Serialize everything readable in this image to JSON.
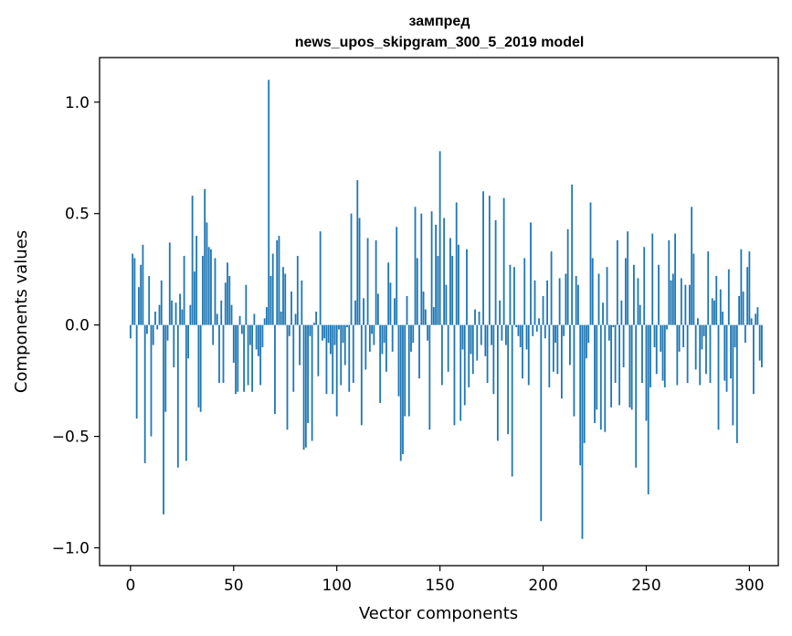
{
  "chart_data": {
    "type": "bar",
    "title_line1": "зампред",
    "title_line2": "news_upos_skipgram_300_5_2019 model",
    "xlabel": "Vector components",
    "ylabel": "Components values",
    "xlim": [
      -15,
      314
    ],
    "ylim": [
      -1.08,
      1.2
    ],
    "xticks": [
      0,
      50,
      100,
      150,
      200,
      250,
      300
    ],
    "xtick_labels": [
      "0",
      "50",
      "100",
      "150",
      "200",
      "250",
      "300"
    ],
    "yticks": [
      -1.0,
      -0.5,
      0.0,
      0.5,
      1.0
    ],
    "ytick_labels": [
      "−1.0",
      "−0.5",
      "0.0",
      "0.5",
      "1.0"
    ],
    "bar_color": "#1f77b4",
    "values": [
      -0.06,
      0.32,
      0.3,
      -0.42,
      0.17,
      0.27,
      0.36,
      -0.62,
      -0.04,
      0.22,
      -0.5,
      -0.09,
      0.06,
      -0.02,
      0.09,
      0.2,
      -0.85,
      -0.39,
      -0.07,
      0.37,
      0.11,
      -0.19,
      0.1,
      -0.64,
      0.14,
      0.07,
      0.31,
      -0.61,
      -0.15,
      0.09,
      0.58,
      0.24,
      0.4,
      -0.37,
      -0.39,
      0.31,
      0.61,
      0.46,
      0.35,
      0.34,
      -0.09,
      0.3,
      0.05,
      -0.26,
      0.11,
      -0.26,
      0.19,
      0.28,
      0.22,
      0.09,
      -0.17,
      -0.31,
      -0.3,
      0.04,
      -0.04,
      -0.3,
      0.18,
      -0.27,
      -0.09,
      -0.3,
      0.05,
      -0.11,
      -0.14,
      -0.27,
      -0.1,
      0.03,
      0.08,
      1.1,
      0.22,
      0.32,
      -0.4,
      0.38,
      0.4,
      0.06,
      0.26,
      0.23,
      -0.47,
      -0.05,
      0.15,
      -0.3,
      0.05,
      0.31,
      -0.18,
      0.2,
      -0.56,
      -0.55,
      -0.44,
      -0.05,
      -0.52,
      0.01,
      0.06,
      -0.23,
      0.42,
      -0.07,
      -0.06,
      -0.31,
      -0.08,
      -0.13,
      -0.31,
      -0.09,
      -0.41,
      -0.02,
      -0.27,
      -0.08,
      -0.18,
      -0.01,
      -0.3,
      0.5,
      -0.26,
      0.11,
      0.65,
      0.48,
      -0.45,
      0.12,
      -0.2,
      0.39,
      -0.12,
      -0.04,
      -0.09,
      0.38,
      0.14,
      -0.35,
      -0.13,
      -0.08,
      -0.21,
      0.28,
      0.19,
      -0.12,
      0.12,
      0.44,
      -0.32,
      -0.61,
      -0.58,
      -0.41,
      0.13,
      -0.41,
      -0.12,
      -0.08,
      0.53,
      0.3,
      -0.24,
      0.5,
      0.15,
      0.07,
      -0.07,
      -0.47,
      0.51,
      0.08,
      0.45,
      0.31,
      0.78,
      -0.27,
      0.48,
      0.18,
      -0.21,
      0.39,
      0.31,
      -0.45,
      0.55,
      0.36,
      -0.43,
      -0.11,
      -0.36,
      0.34,
      -0.28,
      -0.13,
      -0.22,
      0.07,
      -0.16,
      0.06,
      -0.09,
      0.6,
      -0.14,
      -0.26,
      0.58,
      -0.09,
      -0.31,
      0.47,
      -0.52,
      0.11,
      -0.07,
      0.57,
      -0.09,
      -0.49,
      0.27,
      -0.68,
      0.26,
      -0.01,
      -0.05,
      -0.1,
      -0.24,
      0.3,
      -0.11,
      -0.27,
      0.46,
      -0.05,
      0.2,
      -0.03,
      0.03,
      -0.88,
      0.13,
      -0.06,
      0.2,
      -0.28,
      0.33,
      -0.21,
      -0.08,
      -0.22,
      0.21,
      -0.33,
      -0.05,
      0.23,
      0.43,
      -0.18,
      0.63,
      -0.41,
      0.22,
      0.18,
      -0.63,
      -0.96,
      -0.53,
      -0.15,
      -0.08,
      0.55,
      0.3,
      -0.44,
      -0.38,
      0.23,
      -0.47,
      0.1,
      -0.48,
      0.26,
      -0.07,
      -0.37,
      -0.01,
      -0.26,
      0.38,
      -0.36,
      0.11,
      -0.19,
      0.3,
      0.42,
      -0.37,
      -0.38,
      0.27,
      -0.64,
      0.21,
      0.09,
      -0.26,
      0.35,
      -0.43,
      -0.76,
      -0.28,
      0.41,
      -0.1,
      -0.22,
      0.27,
      -0.12,
      -0.25,
      -0.28,
      -0.02,
      0.38,
      0.2,
      0.23,
      0.41,
      -0.27,
      -0.12,
      0.21,
      -0.1,
      0.18,
      -0.26,
      0.18,
      0.53,
      0.32,
      -0.2,
      0.03,
      -0.27,
      -0.11,
      -0.05,
      -0.22,
      0.33,
      -0.26,
      0.12,
      0.11,
      0.22,
      -0.47,
      0.16,
      0.06,
      -0.25,
      -0.3,
      0.25,
      -0.24,
      -0.45,
      -0.1,
      -0.53,
      0.13,
      0.34,
      0.15,
      -0.08,
      0.26,
      0.33,
      0.03,
      -0.31,
      0.05,
      0.08,
      -0.16,
      -0.19
    ]
  }
}
